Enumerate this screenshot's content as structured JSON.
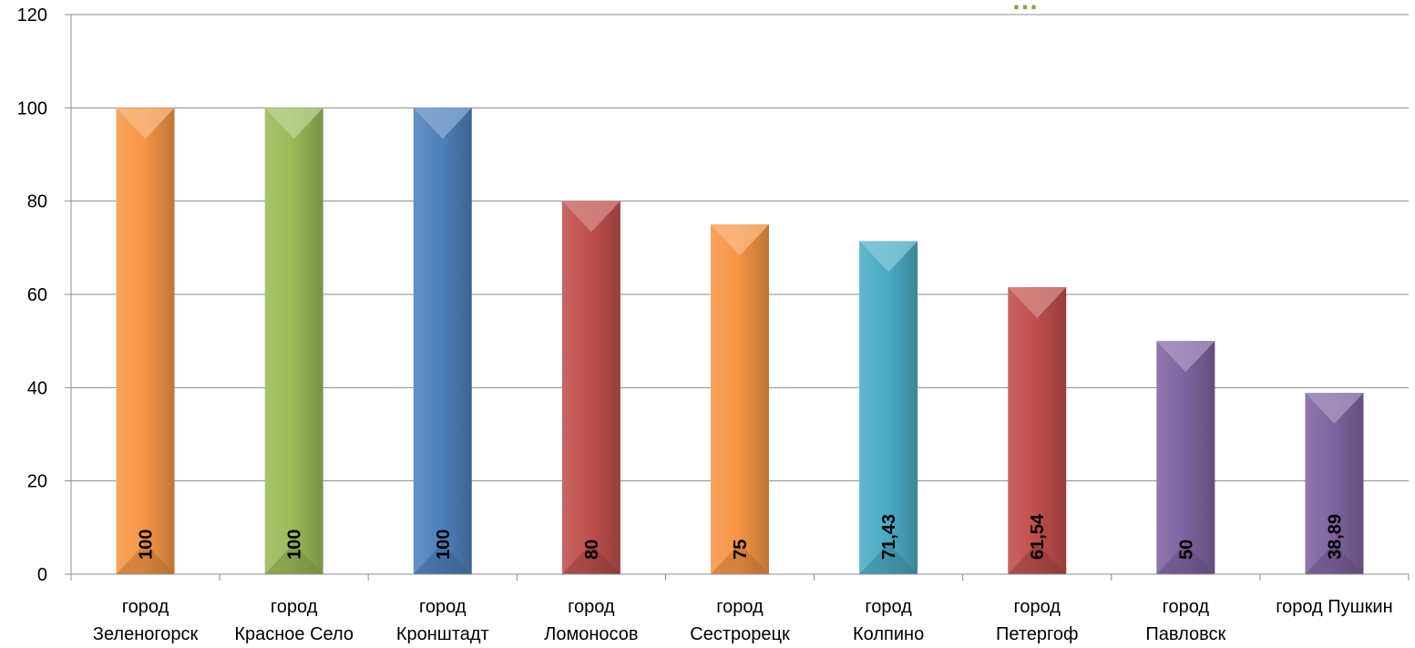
{
  "chart_data": {
    "type": "bar",
    "title_fragment": "…",
    "categories": [
      [
        "город",
        "Зеленогорск"
      ],
      [
        "город",
        "Красное Село"
      ],
      [
        "город",
        "Кронштадт"
      ],
      [
        "город",
        "Ломоносов"
      ],
      [
        "город",
        "Сестрорецк"
      ],
      [
        "город",
        "Колпино"
      ],
      [
        "город",
        "Петергоф"
      ],
      [
        "город",
        "Павловск"
      ],
      [
        "город Пушкин"
      ]
    ],
    "values": [
      100,
      100,
      100,
      80,
      75,
      71.43,
      61.54,
      50,
      38.89
    ],
    "value_labels": [
      "100",
      "100",
      "100",
      "80",
      "75",
      "71,43",
      "61,54",
      "50",
      "38,89"
    ],
    "colors": [
      "#f79646",
      "#9bbb59",
      "#4f81bd",
      "#c0504d",
      "#f79646",
      "#4bacc6",
      "#c0504d",
      "#8064a2",
      "#8064a2"
    ],
    "ylim": [
      0,
      120
    ],
    "yticks": [
      0,
      20,
      40,
      60,
      80,
      100,
      120
    ],
    "grid": true,
    "legend": "none"
  }
}
